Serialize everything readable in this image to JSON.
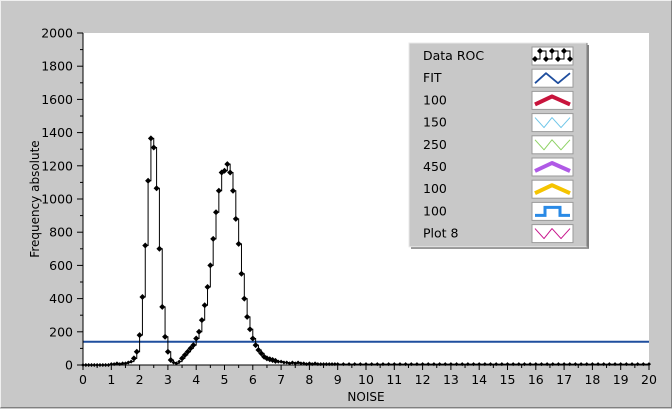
{
  "chart_data": {
    "type": "line",
    "xlabel": "NOISE",
    "ylabel": "Frequency absolute",
    "xlim": [
      0,
      20
    ],
    "ylim": [
      0,
      2000
    ],
    "x_ticks": [
      "0",
      "1",
      "2",
      "3",
      "4",
      "5",
      "6",
      "7",
      "8",
      "9",
      "10",
      "11",
      "12",
      "13",
      "14",
      "15",
      "16",
      "17",
      "18",
      "19",
      "20"
    ],
    "y_ticks": [
      "0",
      "200",
      "400",
      "600",
      "800",
      "1000",
      "1200",
      "1400",
      "1600",
      "1800",
      "2000"
    ],
    "grid": false,
    "legend_position": "top-right",
    "series": [
      {
        "name": "Data ROC",
        "color": "#000000",
        "marker": "diamond",
        "x": [
          0.0,
          0.1,
          0.2,
          0.3,
          0.4,
          0.5,
          0.6,
          0.7,
          0.8,
          0.9,
          1.0,
          1.1,
          1.2,
          1.3,
          1.4,
          1.5,
          1.6,
          1.7,
          1.8,
          1.9,
          2.0,
          2.1,
          2.2,
          2.3,
          2.4,
          2.5,
          2.6,
          2.7,
          2.8,
          2.9,
          3.0,
          3.1,
          3.2,
          3.3,
          3.4,
          3.5,
          3.6,
          3.7,
          3.8,
          3.9,
          4.0,
          4.1,
          4.2,
          4.3,
          4.4,
          4.5,
          4.6,
          4.7,
          4.8,
          4.9,
          5.0,
          5.1,
          5.2,
          5.3,
          5.4,
          5.5,
          5.6,
          5.7,
          5.8,
          5.9,
          6.0,
          6.1,
          6.2,
          6.3,
          6.4,
          6.5,
          6.6,
          6.7,
          6.8,
          6.9,
          7.0,
          7.1,
          7.2,
          7.3,
          7.4,
          7.5,
          7.6,
          7.7,
          7.8,
          7.9,
          8.0,
          8.1,
          8.2,
          8.3,
          8.4,
          8.5,
          8.6,
          8.7,
          8.8,
          8.9,
          9.0,
          9.2,
          9.4,
          9.6,
          9.8,
          10.0,
          10.2,
          10.4,
          10.6,
          10.8,
          11.0,
          11.2,
          11.4,
          11.6,
          11.8,
          12.0,
          12.2,
          12.4,
          12.6,
          12.8,
          13.0,
          13.2,
          13.4,
          13.6,
          13.8,
          14.0,
          14.2,
          14.4,
          14.6,
          14.8,
          15.0,
          15.2,
          15.4,
          15.6,
          15.8,
          16.0,
          16.2,
          16.4,
          16.6,
          16.8,
          17.0,
          17.2,
          17.4,
          17.6,
          17.8,
          18.0,
          18.2,
          18.4,
          18.6,
          18.8,
          19.0,
          19.2,
          19.4,
          19.6,
          19.8,
          20.0
        ],
        "values": [
          0,
          0,
          0,
          0,
          0,
          0,
          0,
          0,
          0,
          0,
          5,
          5,
          10,
          5,
          10,
          10,
          15,
          20,
          40,
          80,
          180,
          410,
          720,
          1110,
          1365,
          1310,
          1065,
          700,
          350,
          170,
          80,
          30,
          15,
          10,
          20,
          40,
          60,
          80,
          100,
          120,
          160,
          200,
          270,
          360,
          470,
          600,
          760,
          920,
          1050,
          1160,
          1170,
          1210,
          1160,
          1050,
          880,
          730,
          550,
          400,
          290,
          215,
          160,
          120,
          90,
          70,
          50,
          40,
          35,
          30,
          25,
          20,
          20,
          15,
          15,
          10,
          15,
          10,
          15,
          10,
          10,
          5,
          10,
          5,
          10,
          5,
          5,
          5,
          5,
          5,
          5,
          5,
          5,
          5,
          5,
          5,
          5,
          5,
          5,
          5,
          5,
          5,
          5,
          5,
          5,
          5,
          5,
          5,
          5,
          5,
          5,
          5,
          5,
          5,
          5,
          5,
          5,
          5,
          5,
          5,
          5,
          5,
          5,
          5,
          5,
          5,
          5,
          5,
          5,
          5,
          5,
          5,
          5,
          5,
          5,
          5,
          5,
          5,
          5,
          5,
          5,
          5,
          5,
          5,
          5,
          5,
          5,
          5
        ]
      },
      {
        "name": "FIT",
        "color": "#1f4e9e",
        "x": [
          0,
          20
        ],
        "values": [
          140,
          140
        ]
      },
      {
        "name": "100",
        "color": "#c8143c",
        "x": [],
        "values": []
      },
      {
        "name": "150",
        "color": "#6fc6e8",
        "x": [],
        "values": []
      },
      {
        "name": "250",
        "color": "#8ed264",
        "x": [],
        "values": []
      },
      {
        "name": "450",
        "color": "#b05ae6",
        "x": [],
        "values": []
      },
      {
        "name": "100",
        "color": "#f5c400",
        "x": [],
        "values": []
      },
      {
        "name": "100",
        "color": "#2a8ae6",
        "x": [],
        "values": []
      },
      {
        "name": "Plot 8",
        "color": "#c8148c",
        "x": [],
        "values": []
      }
    ]
  }
}
